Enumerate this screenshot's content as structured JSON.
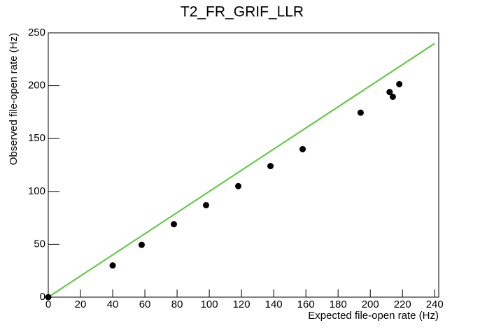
{
  "chart_data": {
    "type": "scatter",
    "title": "T2_FR_GRIF_LLR",
    "x_label": "Expected file-open rate (Hz)",
    "y_label": "Observed file-open rate (Hz)",
    "series": [
      {
        "color": "#000000",
        "x": [
          0,
          40,
          58,
          78,
          98,
          118,
          138,
          158,
          194,
          212,
          214,
          218
        ],
        "values": [
          0,
          30,
          49.5,
          69,
          87,
          105,
          124,
          140,
          174.5,
          194,
          189.5,
          201.5
        ]
      }
    ],
    "reference_line": {
      "x": [
        0,
        240
      ],
      "values": [
        0,
        240
      ],
      "color": "#5ac83a"
    },
    "xlim": [
      0,
      242.5
    ],
    "xticks": [
      0,
      20,
      40,
      60,
      80,
      100,
      120,
      140,
      160,
      180,
      200,
      220,
      240
    ],
    "ylim": [
      0,
      250
    ],
    "yticks": [
      0,
      50,
      100,
      150,
      200,
      250
    ]
  }
}
